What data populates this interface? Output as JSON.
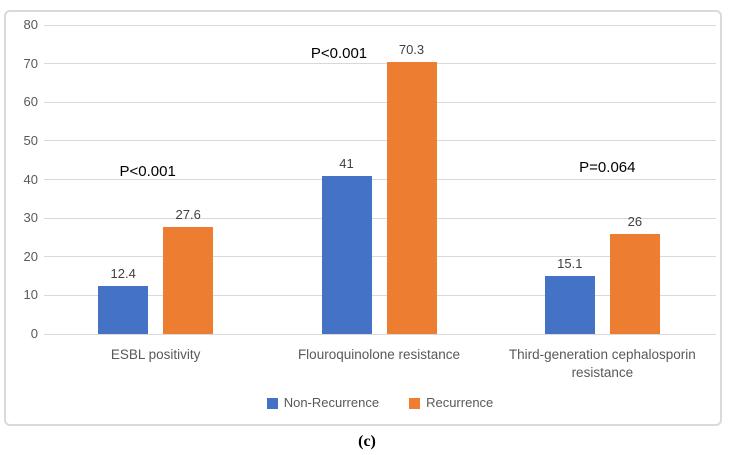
{
  "figure": {
    "caption": "(c)"
  },
  "colors": {
    "grid": "#D9D9D9",
    "frame_border": "#D9D9D9",
    "axis_text": "#595959",
    "data_label_text": "#404040",
    "p_value_text": "#000000",
    "background": "#FFFFFF"
  },
  "chart_data": {
    "type": "bar",
    "title": "",
    "xlabel": "",
    "ylabel": "",
    "categories": [
      "ESBL positivity",
      "Flouroquinolone resistance",
      "Third-generation cephalosporin resistance"
    ],
    "series": [
      {
        "name": "Non-Recurrence",
        "color": "#4472C4",
        "values": [
          12.4,
          41,
          15.1
        ],
        "labels": [
          "12.4",
          "41",
          "15.1"
        ]
      },
      {
        "name": "Recurrence",
        "color": "#ED7D31",
        "values": [
          27.6,
          70.3,
          26
        ],
        "labels": [
          "27.6",
          "70.3",
          "26"
        ]
      }
    ],
    "annotations": [
      {
        "text": "P<0.001",
        "category_index": 0,
        "dx": -8,
        "y_value": 42
      },
      {
        "text": "P<0.001",
        "category_index": 1,
        "dx": -40,
        "y_value": 72.5
      },
      {
        "text": "P=0.064",
        "category_index": 2,
        "dx": 5,
        "y_value": 43
      }
    ],
    "yticks": [
      0,
      10,
      20,
      30,
      40,
      50,
      60,
      70,
      80
    ],
    "ylim": [
      0,
      80
    ],
    "grid": true,
    "legend_position": "bottom"
  }
}
